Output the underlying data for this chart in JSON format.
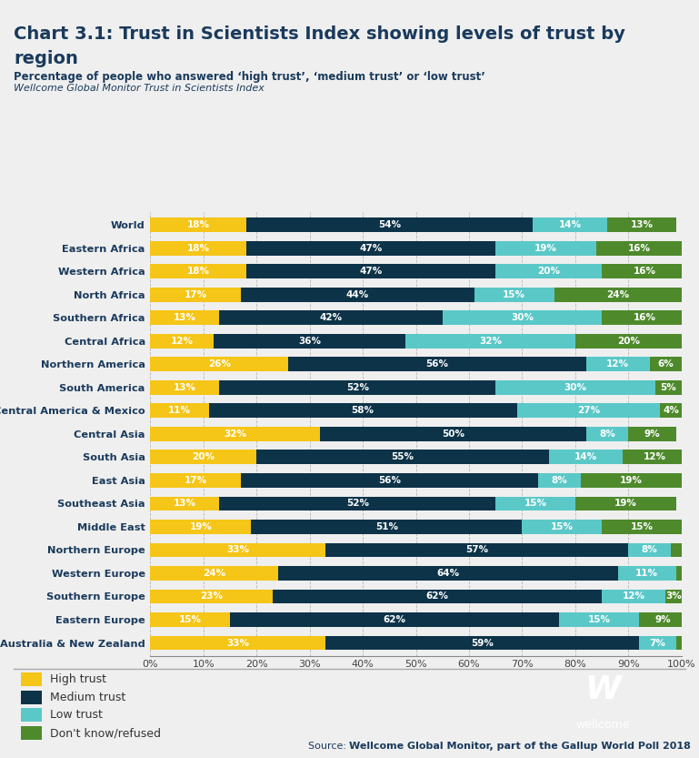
{
  "title_line1": "Chart 3.1: Trust in Scientists Index showing levels of trust by",
  "title_line2": "region",
  "subtitle1": "Percentage of people who answered ‘high trust’, ‘medium trust’ or ‘low trust’",
  "subtitle2": "Wellcome Global Monitor Trust in Scientists Index",
  "source_prefix": "Source: ",
  "source_bold": "Wellcome Global Monitor, part of the Gallup World Poll 2018",
  "regions": [
    "World",
    "Eastern Africa",
    "Western Africa",
    "North Africa",
    "Southern Africa",
    "Central Africa",
    "Northern America",
    "South America",
    "Central America & Mexico",
    "Central Asia",
    "South Asia",
    "East Asia",
    "Southeast Asia",
    "Middle East",
    "Northern Europe",
    "Western Europe",
    "Southern Europe",
    "Eastern Europe",
    "Australia & New Zealand"
  ],
  "high_trust": [
    18,
    18,
    18,
    17,
    13,
    12,
    26,
    13,
    11,
    32,
    20,
    17,
    13,
    19,
    33,
    24,
    23,
    15,
    33
  ],
  "medium_trust": [
    54,
    47,
    47,
    44,
    42,
    36,
    56,
    52,
    58,
    50,
    55,
    56,
    52,
    51,
    57,
    64,
    62,
    62,
    59
  ],
  "low_trust": [
    14,
    19,
    20,
    15,
    30,
    32,
    12,
    30,
    27,
    8,
    14,
    8,
    15,
    15,
    8,
    11,
    12,
    15,
    7
  ],
  "dontknow": [
    13,
    16,
    16,
    24,
    16,
    20,
    6,
    5,
    4,
    9,
    12,
    19,
    19,
    15,
    2,
    1,
    3,
    9,
    1
  ],
  "color_high": "#F5C518",
  "color_medium": "#0D3349",
  "color_low": "#5BC8C8",
  "color_dontknow": "#4E8A2C",
  "bg_color": "#EFEFEF",
  "top_bar_color": "#0D3349",
  "text_color": "#1a3a5c",
  "legend_labels": [
    "High trust",
    "Medium trust",
    "Low trust",
    "Don't know/refused"
  ],
  "wellcome_bg": "#1C5270",
  "bar_height": 0.62,
  "label_fontsize": 7.5,
  "ytick_fontsize": 8.2
}
